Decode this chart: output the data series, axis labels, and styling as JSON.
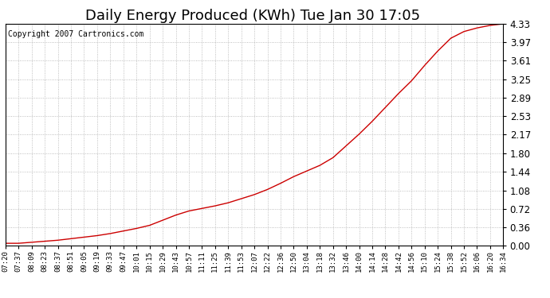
{
  "title": "Daily Energy Produced (KWh) Tue Jan 30 17:05",
  "copyright_text": "Copyright 2007 Cartronics.com",
  "line_color": "#cc0000",
  "background_color": "#ffffff",
  "plot_bg_color": "#ffffff",
  "grid_color": "#999999",
  "yticks": [
    0.0,
    0.36,
    0.72,
    1.08,
    1.44,
    1.8,
    2.17,
    2.53,
    2.89,
    3.25,
    3.61,
    3.97,
    4.33
  ],
  "ylim": [
    0.0,
    4.33
  ],
  "xtick_labels": [
    "07:20",
    "07:37",
    "08:09",
    "08:23",
    "08:37",
    "08:51",
    "09:05",
    "09:19",
    "09:33",
    "09:47",
    "10:01",
    "10:15",
    "10:29",
    "10:43",
    "10:57",
    "11:11",
    "11:25",
    "11:39",
    "11:53",
    "12:07",
    "12:22",
    "12:36",
    "12:50",
    "13:04",
    "13:18",
    "13:32",
    "13:46",
    "14:00",
    "14:14",
    "14:28",
    "14:42",
    "14:56",
    "15:10",
    "15:24",
    "15:38",
    "15:52",
    "16:06",
    "16:20",
    "16:34"
  ],
  "y_values": [
    0.05,
    0.05,
    0.07,
    0.09,
    0.11,
    0.14,
    0.17,
    0.2,
    0.24,
    0.29,
    0.34,
    0.4,
    0.5,
    0.6,
    0.68,
    0.73,
    0.78,
    0.84,
    0.92,
    1.0,
    1.1,
    1.22,
    1.35,
    1.46,
    1.57,
    1.72,
    1.95,
    2.18,
    2.43,
    2.7,
    2.97,
    3.22,
    3.52,
    3.8,
    4.05,
    4.18,
    4.25,
    4.3,
    4.33
  ],
  "title_fontsize": 13,
  "copyright_fontsize": 7,
  "ytick_fontsize": 8.5,
  "xtick_fontsize": 6.5
}
